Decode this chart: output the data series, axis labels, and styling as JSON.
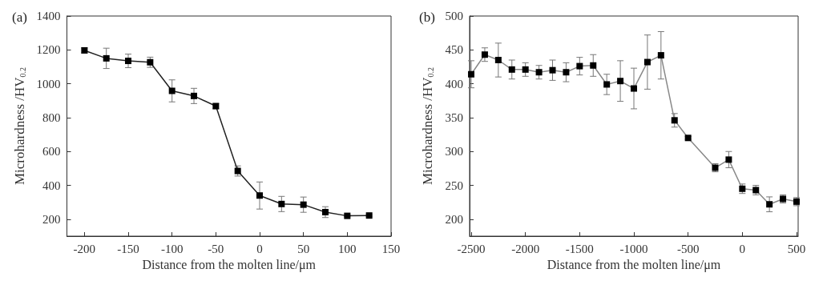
{
  "chart_data": [
    {
      "type": "line",
      "title": "(a)",
      "xlabel": "Distance from the molten line/μm",
      "ylabel": "Microhardness /HV$_{0.2}$",
      "x": [
        -200,
        -175,
        -150,
        -125,
        -100,
        -75,
        -50,
        -25,
        0,
        25,
        50,
        75,
        100,
        125
      ],
      "series": [
        {
          "color": "#222222",
          "values": [
            1197,
            1150,
            1135,
            1127,
            958,
            928,
            868,
            485,
            340,
            290,
            286,
            242,
            220,
            222
          ],
          "errors": [
            15,
            60,
            40,
            30,
            65,
            45,
            15,
            30,
            80,
            45,
            45,
            32,
            5,
            5
          ]
        }
      ],
      "xlim": [
        -220,
        150
      ],
      "xticks": [
        -200,
        -150,
        -100,
        -50,
        0,
        50,
        100,
        150
      ],
      "ylim": [
        100,
        1400
      ],
      "yticks": [
        200,
        400,
        600,
        800,
        1000,
        1200,
        1400
      ],
      "grid": false,
      "marker": "square",
      "line_style": "solid"
    },
    {
      "type": "line",
      "title": "(b)",
      "xlabel": "Distance from the molten line/μm",
      "ylabel": "Microhardness /HV$_{0.2}$",
      "x": [
        -2500,
        -2375,
        -2250,
        -2125,
        -2000,
        -1875,
        -1750,
        -1625,
        -1500,
        -1375,
        -1250,
        -1125,
        -1000,
        -875,
        -750,
        -625,
        -500,
        -250,
        -125,
        0,
        125,
        250,
        375,
        500
      ],
      "series": [
        {
          "color": "#888888",
          "values": [
            414,
            443,
            435,
            421,
            421,
            417,
            420,
            417,
            426,
            427,
            399,
            404,
            393,
            432,
            442,
            346,
            320,
            276,
            288,
            245,
            243,
            222,
            230,
            226
          ],
          "errors": [
            20,
            10,
            25,
            14,
            10,
            10,
            15,
            14,
            13,
            16,
            15,
            30,
            30,
            40,
            35,
            10,
            2,
            6,
            12,
            7,
            7,
            11,
            6,
            6
          ]
        }
      ],
      "xlim": [
        -2515,
        515
      ],
      "xticks": [
        -2500,
        -2000,
        -1500,
        -1000,
        -500,
        0,
        500
      ],
      "ylim": [
        175,
        500
      ],
      "yticks": [
        200,
        250,
        300,
        350,
        400,
        450,
        500
      ],
      "grid": false,
      "marker": "square",
      "line_style": "solid"
    }
  ]
}
